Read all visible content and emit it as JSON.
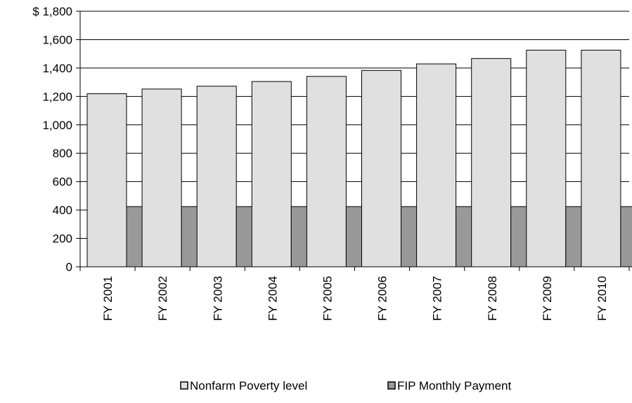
{
  "chart_data": {
    "type": "bar",
    "categories": [
      "FY 2001",
      "FY 2002",
      "FY 2003",
      "FY 2004",
      "FY 2005",
      "FY 2006",
      "FY 2007",
      "FY 2008",
      "FY 2009",
      "FY 2010"
    ],
    "series": [
      {
        "name": "Nonfarm Poverty level",
        "values": [
          1219,
          1252,
          1272,
          1305,
          1341,
          1383,
          1429,
          1467,
          1526,
          1526
        ],
        "color": "#e0e0e0"
      },
      {
        "name": "FIP Monthly Payment",
        "values": [
          424,
          424,
          424,
          424,
          424,
          424,
          424,
          424,
          424,
          424
        ],
        "color": "#999999"
      }
    ],
    "title": "",
    "xlabel": "",
    "ylabel": "",
    "ylim": [
      0,
      1800
    ],
    "yticks": [
      "$ 1,800",
      "1,600",
      "1,400",
      "1,200",
      "1,000",
      "800",
      "600",
      "400",
      "200",
      "0"
    ],
    "grid": true,
    "legend_position": "bottom"
  }
}
